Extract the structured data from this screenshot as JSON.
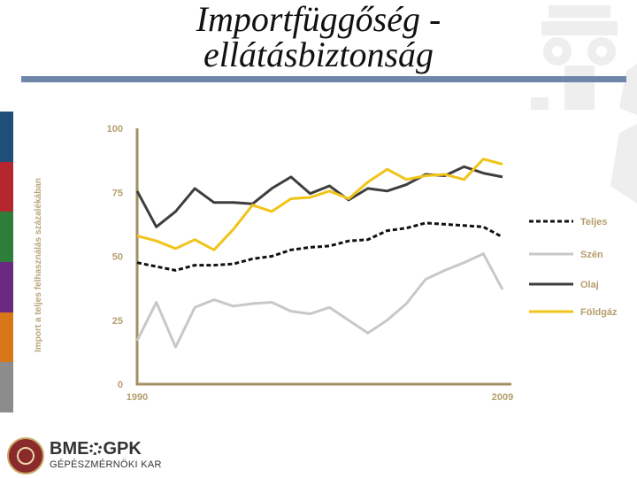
{
  "slide": {
    "title_line1": "Importfüggőség -",
    "title_line2": "ellátásbiztonság",
    "side_colors": [
      "#1f4e79",
      "#b5262f",
      "#2e7d3a",
      "#6a2a82",
      "#d8761a",
      "#8c8c8c"
    ]
  },
  "logo": {
    "main_left": "BME",
    "main_right": "GPK",
    "sub": "GÉPÉSZMÉRNÖKI KAR"
  },
  "chart_data": {
    "type": "line",
    "title": "",
    "xlabel": "",
    "ylabel": "Import a teljes felhasználás százalékában",
    "x": [
      1990,
      1991,
      1992,
      1993,
      1994,
      1995,
      1996,
      1997,
      1998,
      1999,
      2000,
      2001,
      2002,
      2003,
      2004,
      2005,
      2006,
      2007,
      2008,
      2009
    ],
    "x_tick_labels": [
      "1990",
      "2009"
    ],
    "xlim": [
      1990,
      2009
    ],
    "ylim": [
      0,
      100
    ],
    "y_ticks": [
      0,
      25,
      50,
      75,
      100
    ],
    "grid": false,
    "legend_position": "right",
    "series": [
      {
        "name": "Teljes",
        "color": "#111111",
        "style": "dotted",
        "values": [
          47.5,
          46,
          44.5,
          46.5,
          46.5,
          47,
          49,
          50,
          52.5,
          53.5,
          54,
          56,
          56.5,
          60,
          61,
          63,
          62.5,
          62,
          61.5,
          57.5
        ]
      },
      {
        "name": "Szén",
        "color": "#c8c8c8",
        "style": "solid",
        "values": [
          17,
          32,
          14.5,
          30,
          33,
          30.5,
          31.5,
          32,
          28.5,
          27.5,
          30,
          25,
          20,
          25,
          31.5,
          41,
          44.5,
          47.5,
          51,
          37
        ]
      },
      {
        "name": "Olaj",
        "color": "#3e3e3e",
        "style": "solid",
        "values": [
          75.5,
          61.5,
          67.5,
          76.5,
          71,
          71,
          70.5,
          76.5,
          81,
          74.5,
          77.5,
          72,
          76.5,
          75.5,
          78,
          82,
          81.5,
          85,
          82.5,
          81
        ]
      },
      {
        "name": "Földgáz",
        "color": "#f0c419",
        "style": "solid",
        "values": [
          58,
          56,
          53,
          56.5,
          52.5,
          60.5,
          70,
          67.5,
          72.5,
          73,
          75.5,
          72.5,
          79,
          84,
          80,
          81.5,
          82,
          80,
          88,
          86
        ]
      }
    ]
  }
}
